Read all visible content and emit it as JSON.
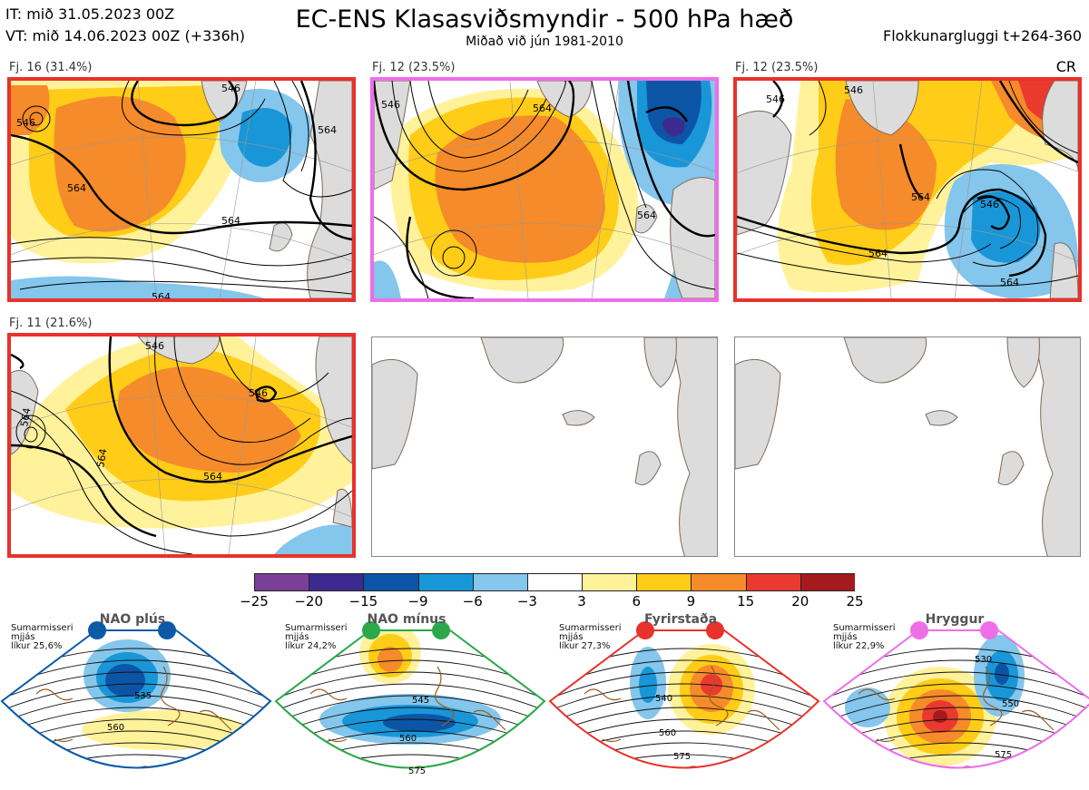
{
  "header": {
    "it_line": "IT: mið 31.05.2023 00Z",
    "vt_line": "VT: mið 14.06.2023 00Z  (+336h)",
    "title": "EC-ENS Klasasviðsmyndir - 500 hPa hæð",
    "subtitle": "Miðað við jún 1981-2010",
    "window": "Flokkunargluggi t+264-360",
    "corner_code": "CR"
  },
  "colors": {
    "red_frame": "#e8322b",
    "pink_frame": "#ee6ee8",
    "nao_plus": "#0a5aa8",
    "nao_minus": "#2aa84a",
    "blocking": "#e8322b",
    "ridge": "#ee6ee8",
    "land": "#dcdcdc",
    "coast": "#7d6a5a",
    "contour": "#000000"
  },
  "panels": [
    {
      "label": "Fj. 16 (31.4%)",
      "frame": "red",
      "contour_labels": [
        "564",
        "564",
        "564",
        "546",
        "546",
        "564"
      ]
    },
    {
      "label": "Fj. 12 (23.5%)",
      "frame": "pink",
      "contour_labels": [
        "564",
        "546",
        "564"
      ]
    },
    {
      "label": "Fj. 12 (23.5%)",
      "frame": "red",
      "contour_labels": [
        "546",
        "564",
        "546",
        "564",
        "564",
        "546"
      ]
    },
    {
      "label": "Fj. 11 (21.6%)",
      "frame": "red",
      "contour_labels": [
        "564",
        "564",
        "546",
        "564",
        "546"
      ]
    },
    {
      "label": "",
      "frame": "none",
      "contour_labels": []
    },
    {
      "label": "",
      "frame": "none",
      "contour_labels": []
    }
  ],
  "chart_data": {
    "type": "heatmap",
    "title": "EC-ENS Klasasviðsmyndir - 500 hPa hæð",
    "colorbar": {
      "ticks": [
        "−25",
        "−20",
        "−15",
        "−9",
        "−6",
        "−3",
        "3",
        "6",
        "9",
        "15",
        "20",
        "25"
      ],
      "bin_edges": [
        -25,
        -20,
        -15,
        -9,
        -6,
        -3,
        3,
        6,
        9,
        15,
        20,
        25
      ],
      "colors": [
        "#7b3f9a",
        "#3d2a90",
        "#0c55a6",
        "#1996d8",
        "#84c6ec",
        "#ffffff",
        "#fff29a",
        "#ffcc17",
        "#f58b2a",
        "#ea3a2f",
        "#a51a1c"
      ]
    }
  },
  "regimes": [
    {
      "name": "NAO plús",
      "season": "Sumarmisseri",
      "sub": "mjjás",
      "likur": "líkur 25,6%",
      "color": "#0a5aa8",
      "labels": [
        "535",
        "560"
      ]
    },
    {
      "name": "NAO mínus",
      "season": "Sumarmisseri",
      "sub": "mjjás",
      "likur": "líkur 24,2%",
      "color": "#2aa84a",
      "labels": [
        "545",
        "560",
        "575"
      ]
    },
    {
      "name": "Fyrirstaða",
      "season": "Sumarmisseri",
      "sub": "mjjás",
      "likur": "líkur 27,3%",
      "color": "#e8322b",
      "labels": [
        "540",
        "560",
        "575"
      ]
    },
    {
      "name": "Hryggur",
      "season": "Sumarmisseri",
      "sub": "mjjás",
      "likur": "líkur 22,9%",
      "color": "#ee6ee8",
      "labels": [
        "530",
        "550",
        "575"
      ]
    }
  ]
}
